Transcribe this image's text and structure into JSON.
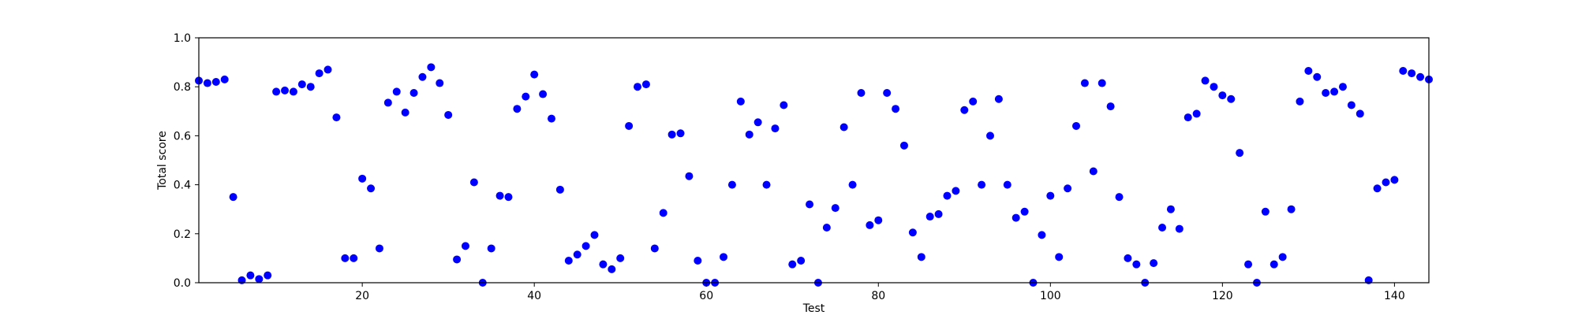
{
  "chart_data": {
    "type": "scatter",
    "xlabel": "Test",
    "ylabel": "Total score",
    "xlim": [
      1,
      144
    ],
    "ylim": [
      0.0,
      1.0
    ],
    "xticks": [
      20,
      40,
      60,
      80,
      100,
      120,
      140
    ],
    "yticks": [
      0.0,
      0.2,
      0.4,
      0.6,
      0.8,
      1.0
    ],
    "xtick_labels": [
      "20",
      "40",
      "60",
      "80",
      "100",
      "120",
      "140"
    ],
    "ytick_labels": [
      "0.0",
      "0.2",
      "0.4",
      "0.6",
      "0.8",
      "1.0"
    ],
    "grid": false,
    "marker_color": "#0000ff",
    "series": [
      {
        "points": [
          [
            1,
            0.825
          ],
          [
            2,
            0.815
          ],
          [
            3,
            0.82
          ],
          [
            4,
            0.83
          ],
          [
            5,
            0.35
          ],
          [
            6,
            0.01
          ],
          [
            7,
            0.03
          ],
          [
            8,
            0.015
          ],
          [
            9,
            0.03
          ],
          [
            10,
            0.78
          ],
          [
            11,
            0.785
          ],
          [
            12,
            0.78
          ],
          [
            13,
            0.81
          ],
          [
            14,
            0.8
          ],
          [
            15,
            0.855
          ],
          [
            16,
            0.87
          ],
          [
            17,
            0.675
          ],
          [
            18,
            0.1
          ],
          [
            19,
            0.1
          ],
          [
            20,
            0.425
          ],
          [
            21,
            0.385
          ],
          [
            22,
            0.14
          ],
          [
            23,
            0.735
          ],
          [
            24,
            0.78
          ],
          [
            25,
            0.695
          ],
          [
            26,
            0.775
          ],
          [
            27,
            0.84
          ],
          [
            28,
            0.88
          ],
          [
            29,
            0.815
          ],
          [
            30,
            0.685
          ],
          [
            31,
            0.095
          ],
          [
            32,
            0.15
          ],
          [
            33,
            0.41
          ],
          [
            34,
            0.0
          ],
          [
            35,
            0.14
          ],
          [
            36,
            0.355
          ],
          [
            37,
            0.35
          ],
          [
            38,
            0.71
          ],
          [
            39,
            0.76
          ],
          [
            40,
            0.85
          ],
          [
            41,
            0.77
          ],
          [
            42,
            0.67
          ],
          [
            43,
            0.38
          ],
          [
            44,
            0.09
          ],
          [
            45,
            0.115
          ],
          [
            46,
            0.15
          ],
          [
            47,
            0.195
          ],
          [
            48,
            0.075
          ],
          [
            49,
            0.055
          ],
          [
            50,
            0.1
          ],
          [
            51,
            0.64
          ],
          [
            52,
            0.8
          ],
          [
            53,
            0.81
          ],
          [
            54,
            0.14
          ],
          [
            55,
            0.285
          ],
          [
            56,
            0.605
          ],
          [
            57,
            0.61
          ],
          [
            58,
            0.435
          ],
          [
            59,
            0.09
          ],
          [
            60,
            0.0
          ],
          [
            61,
            0.0
          ],
          [
            62,
            0.105
          ],
          [
            63,
            0.4
          ],
          [
            64,
            0.74
          ],
          [
            65,
            0.605
          ],
          [
            66,
            0.655
          ],
          [
            67,
            0.4
          ],
          [
            68,
            0.63
          ],
          [
            69,
            0.725
          ],
          [
            70,
            0.075
          ],
          [
            71,
            0.09
          ],
          [
            72,
            0.32
          ],
          [
            73,
            0.0
          ],
          [
            74,
            0.225
          ],
          [
            75,
            0.305
          ],
          [
            76,
            0.635
          ],
          [
            77,
            0.4
          ],
          [
            78,
            0.775
          ],
          [
            79,
            0.235
          ],
          [
            80,
            0.255
          ],
          [
            81,
            0.775
          ],
          [
            82,
            0.71
          ],
          [
            83,
            0.56
          ],
          [
            84,
            0.205
          ],
          [
            85,
            0.105
          ],
          [
            86,
            0.27
          ],
          [
            87,
            0.28
          ],
          [
            88,
            0.355
          ],
          [
            89,
            0.375
          ],
          [
            90,
            0.705
          ],
          [
            91,
            0.74
          ],
          [
            92,
            0.4
          ],
          [
            93,
            0.6
          ],
          [
            94,
            0.75
          ],
          [
            95,
            0.4
          ],
          [
            96,
            0.265
          ],
          [
            97,
            0.29
          ],
          [
            98,
            0.0
          ],
          [
            99,
            0.195
          ],
          [
            100,
            0.355
          ],
          [
            101,
            0.105
          ],
          [
            102,
            0.385
          ],
          [
            103,
            0.64
          ],
          [
            104,
            0.815
          ],
          [
            105,
            0.455
          ],
          [
            106,
            0.815
          ],
          [
            107,
            0.72
          ],
          [
            108,
            0.35
          ],
          [
            109,
            0.1
          ],
          [
            110,
            0.075
          ],
          [
            111,
            0.0
          ],
          [
            112,
            0.08
          ],
          [
            113,
            0.225
          ],
          [
            114,
            0.3
          ],
          [
            115,
            0.22
          ],
          [
            116,
            0.675
          ],
          [
            117,
            0.69
          ],
          [
            118,
            0.825
          ],
          [
            119,
            0.8
          ],
          [
            120,
            0.765
          ],
          [
            121,
            0.75
          ],
          [
            122,
            0.53
          ],
          [
            123,
            0.075
          ],
          [
            124,
            0.0
          ],
          [
            125,
            0.29
          ],
          [
            126,
            0.075
          ],
          [
            127,
            0.105
          ],
          [
            128,
            0.3
          ],
          [
            129,
            0.74
          ],
          [
            130,
            0.865
          ],
          [
            131,
            0.84
          ],
          [
            132,
            0.775
          ],
          [
            133,
            0.78
          ],
          [
            134,
            0.8
          ],
          [
            135,
            0.725
          ],
          [
            136,
            0.69
          ],
          [
            137,
            0.01
          ],
          [
            138,
            0.385
          ],
          [
            139,
            0.41
          ],
          [
            140,
            0.42
          ],
          [
            141,
            0.865
          ],
          [
            142,
            0.855
          ],
          [
            143,
            0.84
          ],
          [
            144,
            0.83
          ]
        ]
      }
    ]
  }
}
